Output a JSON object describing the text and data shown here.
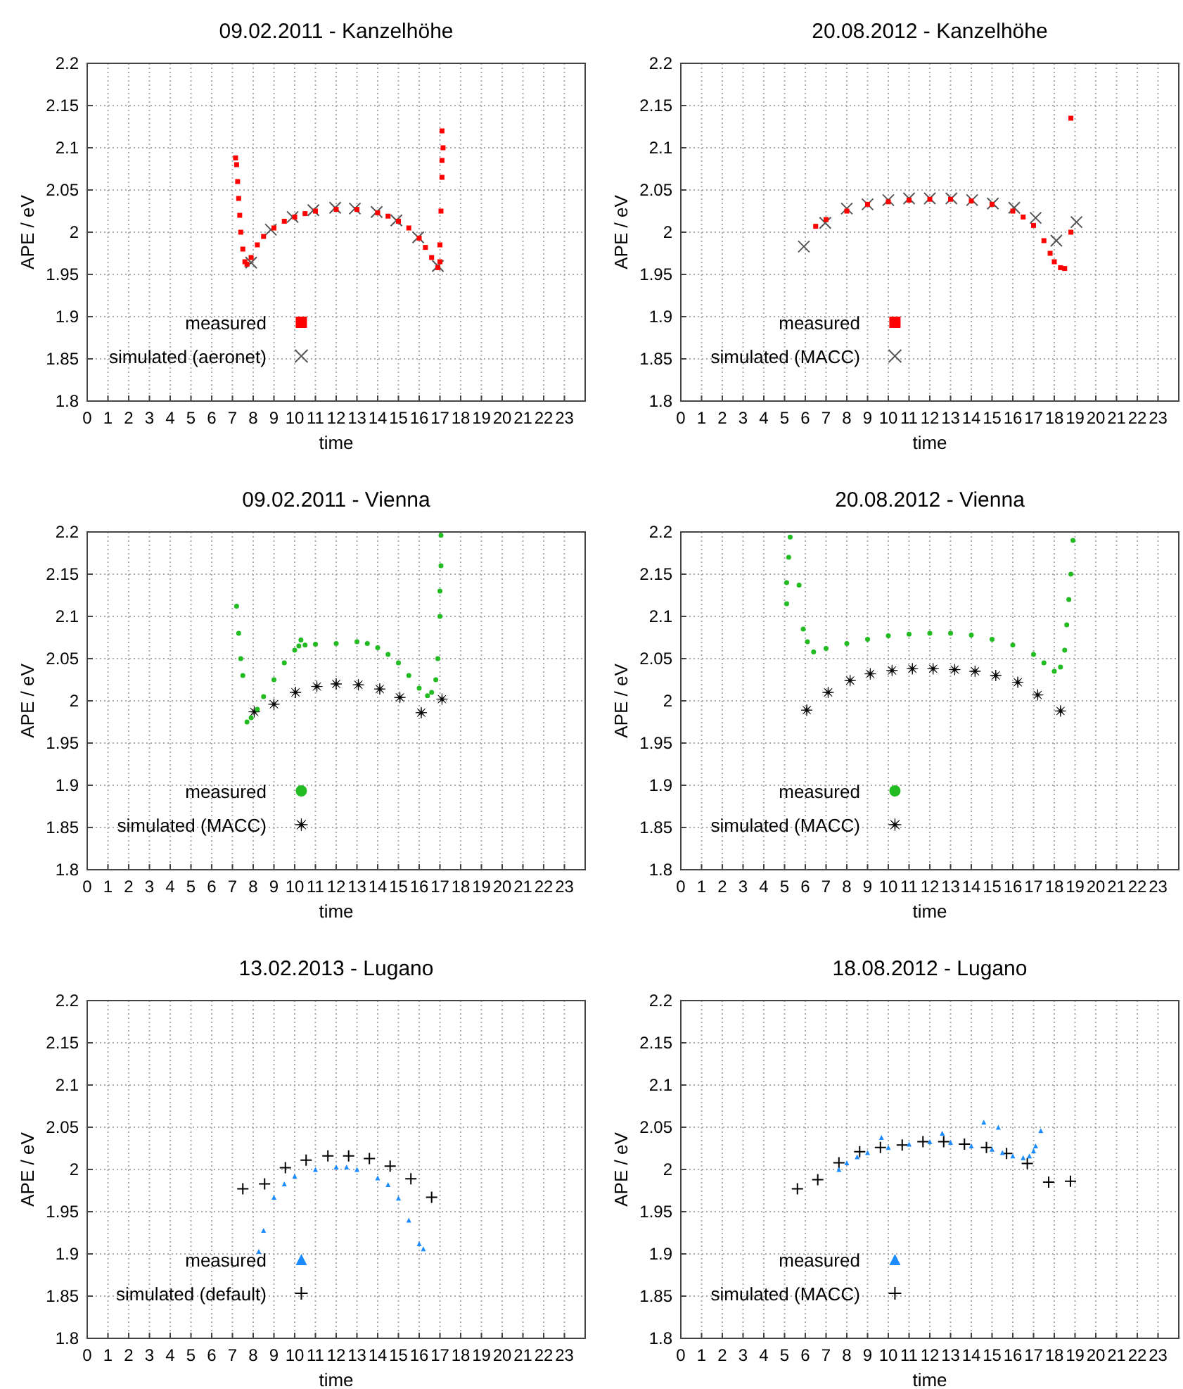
{
  "chart_data": [
    {
      "type": "scatter",
      "title": "09.02.2011 - Kanzelhöhe",
      "xlabel": "time",
      "ylabel": "APE / eV",
      "xlim": [
        0,
        24
      ],
      "xticks": [
        0,
        1,
        2,
        3,
        4,
        5,
        6,
        7,
        8,
        9,
        10,
        11,
        12,
        13,
        14,
        15,
        16,
        17,
        18,
        19,
        20,
        21,
        22,
        23
      ],
      "ylim": [
        1.8,
        2.2
      ],
      "yticks": [
        1.8,
        1.85,
        1.9,
        1.95,
        2,
        2.05,
        2.1,
        2.15,
        2.2
      ],
      "grid": true,
      "legend": "bottom left",
      "series": [
        {
          "name": "measured",
          "color": "#ff0000",
          "marker": "square",
          "x": [
            7.15,
            7.2,
            7.25,
            7.3,
            7.35,
            7.4,
            7.5,
            7.6,
            7.7,
            7.9,
            8.2,
            8.5,
            9,
            9.5,
            10,
            10.5,
            11,
            12,
            13,
            14,
            14.5,
            15,
            15.5,
            16,
            16.3,
            16.6,
            16.9,
            17,
            17,
            17.05,
            17.1,
            17.1,
            17.15,
            17.1
          ],
          "values": [
            2.088,
            2.08,
            2.06,
            2.04,
            2.02,
            2,
            1.98,
            1.965,
            1.962,
            1.97,
            1.985,
            1.995,
            2.005,
            2.013,
            2.018,
            2.022,
            2.025,
            2.027,
            2.027,
            2.023,
            2.019,
            2.013,
            2.005,
            1.993,
            1.982,
            1.97,
            1.958,
            1.965,
            1.985,
            2.025,
            2.065,
            2.085,
            2.1,
            2.12
          ]
        },
        {
          "name": "simulated (aeronet)",
          "color": "#555555",
          "marker": "cross",
          "x": [
            7.9,
            8.85,
            9.9,
            10.9,
            11.95,
            12.9,
            13.95,
            14.9,
            15.95,
            16.9
          ],
          "values": [
            1.964,
            2.003,
            2.018,
            2.026,
            2.029,
            2.028,
            2.024,
            2.014,
            1.994,
            1.96
          ]
        }
      ]
    },
    {
      "type": "scatter",
      "title": "20.08.2012 - Kanzelhöhe",
      "xlabel": "time",
      "ylabel": "APE / eV",
      "xlim": [
        0,
        24
      ],
      "xticks": [
        0,
        1,
        2,
        3,
        4,
        5,
        6,
        7,
        8,
        9,
        10,
        11,
        12,
        13,
        14,
        15,
        16,
        17,
        18,
        19,
        20,
        21,
        22,
        23
      ],
      "ylim": [
        1.8,
        2.2
      ],
      "yticks": [
        1.8,
        1.85,
        1.9,
        1.95,
        2,
        2.05,
        2.1,
        2.15,
        2.2
      ],
      "grid": true,
      "legend": "bottom left",
      "series": [
        {
          "name": "measured",
          "color": "#ff0000",
          "marker": "square",
          "x": [
            6.5,
            7,
            8,
            9,
            10,
            11,
            12,
            13,
            14,
            15,
            16,
            16.5,
            17,
            17.5,
            17.8,
            18,
            18.3,
            18.5,
            18.8,
            18.8
          ],
          "values": [
            2.007,
            2.015,
            2.025,
            2.033,
            2.036,
            2.038,
            2.039,
            2.039,
            2.037,
            2.033,
            2.025,
            2.018,
            2.008,
            1.99,
            1.975,
            1.965,
            1.958,
            1.957,
            2.135,
            2
          ]
        },
        {
          "name": "simulated (MACC)",
          "color": "#555555",
          "marker": "cross",
          "x": [
            5.93,
            6.96,
            8,
            9,
            10,
            11,
            12,
            13.04,
            14.04,
            15.04,
            16.07,
            17.1,
            18.1,
            19.07
          ],
          "values": [
            1.983,
            2.011,
            2.028,
            2.033,
            2.038,
            2.04,
            2.04,
            2.04,
            2.038,
            2.034,
            2.029,
            2.017,
            1.99,
            2.012
          ]
        }
      ]
    },
    {
      "type": "scatter",
      "title": "09.02.2011 - Vienna",
      "xlabel": "time",
      "ylabel": "APE / eV",
      "xlim": [
        0,
        24
      ],
      "xticks": [
        0,
        1,
        2,
        3,
        4,
        5,
        6,
        7,
        8,
        9,
        10,
        11,
        12,
        13,
        14,
        15,
        16,
        17,
        18,
        19,
        20,
        21,
        22,
        23
      ],
      "ylim": [
        1.8,
        2.2
      ],
      "yticks": [
        1.8,
        1.85,
        1.9,
        1.95,
        2,
        2.05,
        2.1,
        2.15,
        2.2
      ],
      "grid": true,
      "legend": "bottom left",
      "series": [
        {
          "name": "measured",
          "color": "#22bb22",
          "marker": "circle",
          "x": [
            7.2,
            7.3,
            7.4,
            7.5,
            7.7,
            7.9,
            8.2,
            8.5,
            9,
            9.5,
            10,
            10.2,
            10.3,
            10.5,
            11,
            12,
            13,
            13.5,
            14,
            14.5,
            15,
            15.5,
            16,
            16.4,
            16.6,
            16.8,
            16.9,
            17,
            17,
            17.05,
            17.05
          ],
          "values": [
            2.112,
            2.08,
            2.05,
            2.03,
            1.975,
            1.98,
            1.99,
            2.005,
            2.025,
            2.045,
            2.06,
            2.065,
            2.072,
            2.066,
            2.067,
            2.068,
            2.07,
            2.068,
            2.063,
            2.055,
            2.045,
            2.03,
            2.015,
            2.006,
            2.01,
            2.025,
            2.05,
            2.1,
            2.13,
            2.16,
            2.196
          ]
        },
        {
          "name": "simulated (MACC)",
          "color": "#000000",
          "marker": "star",
          "x": [
            8.05,
            9,
            10.04,
            11.07,
            12,
            13.07,
            14.1,
            15.07,
            16.1,
            17.1
          ],
          "values": [
            1.987,
            1.996,
            2.01,
            2.017,
            2.02,
            2.019,
            2.014,
            2.004,
            1.986,
            2.002
          ]
        }
      ]
    },
    {
      "type": "scatter",
      "title": "20.08.2012 - Vienna",
      "xlabel": "time",
      "ylabel": "APE / eV",
      "xlim": [
        0,
        24
      ],
      "xticks": [
        0,
        1,
        2,
        3,
        4,
        5,
        6,
        7,
        8,
        9,
        10,
        11,
        12,
        13,
        14,
        15,
        16,
        17,
        18,
        19,
        20,
        21,
        22,
        23
      ],
      "ylim": [
        1.8,
        2.2
      ],
      "yticks": [
        1.8,
        1.85,
        1.9,
        1.95,
        2,
        2.05,
        2.1,
        2.15,
        2.2
      ],
      "grid": true,
      "legend": "bottom left",
      "series": [
        {
          "name": "measured",
          "color": "#22bb22",
          "marker": "circle",
          "x": [
            5.27,
            5.2,
            5.1,
            5.1,
            5.7,
            5.9,
            6.1,
            6.4,
            7,
            8,
            9,
            10,
            11,
            12,
            13,
            14,
            15,
            16,
            17,
            17.5,
            18,
            18.3,
            18.5,
            18.6,
            18.7,
            18.8,
            18.9
          ],
          "values": [
            2.194,
            2.17,
            2.14,
            2.115,
            2.137,
            2.085,
            2.07,
            2.058,
            2.062,
            2.068,
            2.073,
            2.077,
            2.079,
            2.08,
            2.08,
            2.078,
            2.073,
            2.066,
            2.055,
            2.045,
            2.035,
            2.04,
            2.06,
            2.09,
            2.12,
            2.15,
            2.19
          ]
        },
        {
          "name": "simulated (MACC)",
          "color": "#000000",
          "marker": "star",
          "x": [
            6.07,
            7.1,
            8.16,
            9.13,
            10.18,
            11.16,
            12.16,
            13.2,
            14.18,
            15.18,
            16.24,
            17.2,
            18.3
          ],
          "values": [
            1.989,
            2.01,
            2.024,
            2.032,
            2.036,
            2.038,
            2.038,
            2.037,
            2.035,
            2.03,
            2.022,
            2.007,
            1.988
          ]
        }
      ]
    },
    {
      "type": "scatter",
      "title": "13.02.2013 - Lugano",
      "xlabel": "time",
      "ylabel": "APE / eV",
      "xlim": [
        0,
        24
      ],
      "xticks": [
        0,
        1,
        2,
        3,
        4,
        5,
        6,
        7,
        8,
        9,
        10,
        11,
        12,
        13,
        14,
        15,
        16,
        17,
        18,
        19,
        20,
        21,
        22,
        23
      ],
      "ylim": [
        1.8,
        2.2
      ],
      "yticks": [
        1.8,
        1.85,
        1.9,
        1.95,
        2,
        2.05,
        2.1,
        2.15,
        2.2
      ],
      "grid": true,
      "legend": "bottom left",
      "series": [
        {
          "name": "measured",
          "color": "#1a8cff",
          "marker": "triangle",
          "x": [
            8.27,
            8.5,
            9,
            9.5,
            10,
            11,
            12,
            12.5,
            13,
            14,
            14.5,
            15,
            15.5,
            16,
            16.2
          ],
          "values": [
            1.903,
            1.928,
            1.967,
            1.983,
            1.992,
            2,
            2.003,
            2.003,
            2,
            1.99,
            1.982,
            1.966,
            1.94,
            1.912,
            1.906
          ]
        },
        {
          "name": "simulated (default)",
          "color": "#000000",
          "marker": "plus",
          "x": [
            7.5,
            8.55,
            9.55,
            10.55,
            11.6,
            12.6,
            13.6,
            14.6,
            15.6,
            16.6
          ],
          "values": [
            1.977,
            1.983,
            2.002,
            2.011,
            2.016,
            2.016,
            2.013,
            2.004,
            1.989,
            1.967
          ]
        }
      ]
    },
    {
      "type": "scatter",
      "title": "18.08.2012 - Lugano",
      "xlabel": "time",
      "ylabel": "APE / eV",
      "xlim": [
        0,
        24
      ],
      "xticks": [
        0,
        1,
        2,
        3,
        4,
        5,
        6,
        7,
        8,
        9,
        10,
        11,
        12,
        13,
        14,
        15,
        16,
        17,
        18,
        19,
        20,
        21,
        22,
        23
      ],
      "ylim": [
        1.8,
        2.2
      ],
      "yticks": [
        1.8,
        1.85,
        1.9,
        1.95,
        2,
        2.05,
        2.1,
        2.15,
        2.2
      ],
      "grid": true,
      "legend": "bottom left",
      "series": [
        {
          "name": "measured",
          "color": "#1a8cff",
          "marker": "triangle",
          "x": [
            7.62,
            8,
            8.5,
            9,
            10,
            11,
            12,
            13,
            14,
            15,
            15.5,
            16,
            16.5,
            16.8,
            17,
            17.1,
            9.67,
            12.6,
            14.6,
            15.3,
            17.35
          ],
          "values": [
            2,
            2.008,
            2.015,
            2.02,
            2.026,
            2.03,
            2.033,
            2.032,
            2.028,
            2.024,
            2.02,
            2.016,
            2.014,
            2.016,
            2.022,
            2.028,
            2.038,
            2.043,
            2.056,
            2.05,
            2.046
          ]
        },
        {
          "name": "simulated (MACC)",
          "color": "#000000",
          "marker": "plus",
          "x": [
            5.62,
            6.6,
            7.62,
            8.62,
            9.62,
            10.67,
            11.67,
            12.67,
            13.67,
            14.73,
            15.7,
            16.7,
            17.73,
            18.78
          ],
          "values": [
            1.977,
            1.988,
            2.008,
            2.021,
            2.026,
            2.029,
            2.033,
            2.033,
            2.03,
            2.026,
            2.019,
            2.007,
            1.985,
            1.986
          ]
        }
      ]
    }
  ]
}
